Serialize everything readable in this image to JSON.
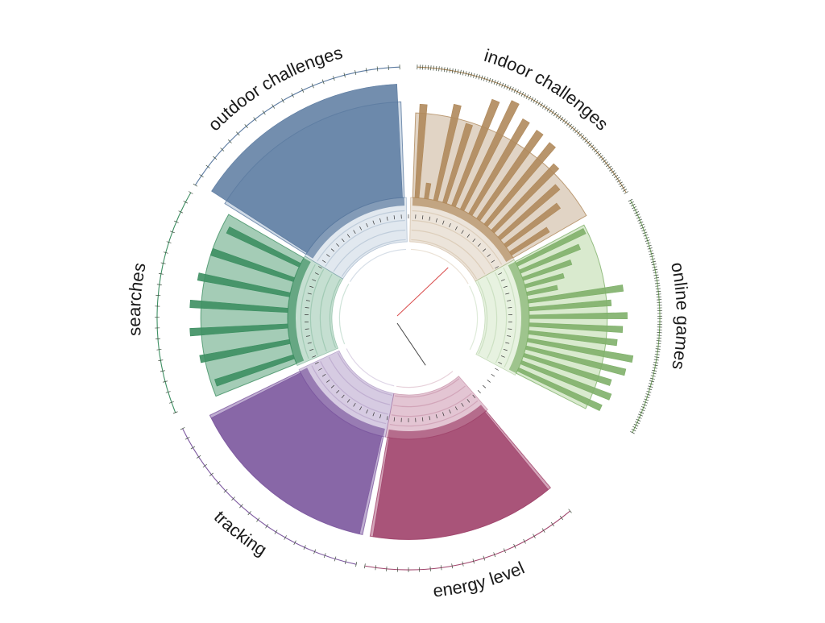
{
  "chart_data": {
    "type": "radial-bar",
    "title": "",
    "sectors": [
      {
        "label": "indoor challenges",
        "color": "#b08a5c",
        "fill": "#c9b196",
        "values": [
          8.7,
          5.2,
          8.9,
          8.2,
          9.6,
          9.9,
          9.4,
          9.3,
          9.2,
          8.6,
          8.0,
          7.5,
          6.5
        ],
        "bar_range": [
          4.5,
          10
        ],
        "wedge_value": 8.3
      },
      {
        "label": "online games",
        "color": "#7fb06a",
        "fill": "#b9d9a6",
        "values": [
          7.9,
          7.4,
          6.8,
          6.3,
          5.9,
          8.8,
          8.2,
          8.9,
          8.7,
          8.5,
          9.3,
          9.1,
          8.6,
          8.8,
          8.6
        ],
        "bar_range": [
          4.5,
          10
        ],
        "wedge_value": 8.0
      },
      {
        "label": "energy level",
        "color": "#a1466d",
        "fill": "#b05a80",
        "values": [
          9.0
        ],
        "bar_range": [
          4.5,
          10
        ],
        "wedge_value": 9.0
      },
      {
        "label": "tracking",
        "color": "#7e5aa0",
        "fill": "#8a6aac",
        "values": [
          9.0
        ],
        "bar_range": [
          4.5,
          10
        ],
        "wedge_value": 9.0
      },
      {
        "label": "searches",
        "color": "#3d8f62",
        "fill": "#5aa37a",
        "values": [
          8.2,
          8.6,
          8.9,
          8.9,
          8.7,
          8.4,
          8.1
        ],
        "bar_range": [
          4.5,
          10
        ],
        "wedge_value": 8.4
      },
      {
        "label": "outdoor challenges",
        "color": "#5b7aa0",
        "fill": "#a8bcd2",
        "values": [
          9.6
        ],
        "bar_range": [
          4.5,
          10
        ],
        "wedge_value": 8.8
      }
    ],
    "axis": {
      "min": 0,
      "max": 10
    },
    "grid": true,
    "legend": "none"
  }
}
